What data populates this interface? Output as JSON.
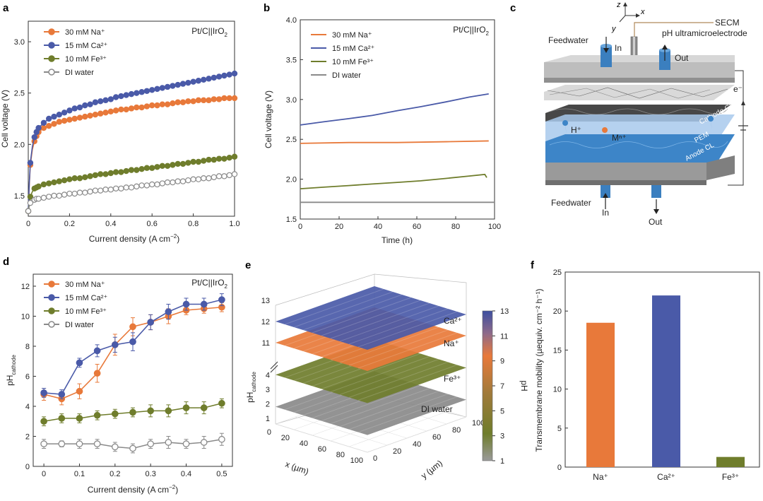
{
  "panels": {
    "a": {
      "label": "a",
      "tag": "Pt/C||IrO",
      "tag_sub": "2",
      "xlabel": "Current density (A cm",
      "xlabel_sup": "−2",
      "xlabel_end": ")",
      "ylabel": "Cell voltage (V)"
    },
    "b": {
      "label": "b",
      "tag": "Pt/C||IrO",
      "tag_sub": "2",
      "xlabel": "Time (h)",
      "ylabel": "Cell voltage (V)"
    },
    "c": {
      "label": "c",
      "secm": "SECM",
      "ph_electrode": "pH ultramicroelectrode",
      "feedwater_top": "Feedwater",
      "in_top": "In",
      "out_top": "Out",
      "electron": "e⁻",
      "cathode_cl": "Cathode CL",
      "pem": "PEM",
      "anode_cl": "Anode CL",
      "h_ion": "H⁺",
      "m_ion": "Mⁿ⁺",
      "feedwater_bottom": "Feedwater",
      "in_bottom": "In",
      "out_bottom": "Out",
      "axis_z": "z",
      "axis_x": "x",
      "axis_y": "y"
    },
    "d": {
      "label": "d",
      "tag": "Pt/C||IrO",
      "tag_sub": "2",
      "xlabel": "Current density (A cm",
      "xlabel_sup": "−2",
      "xlabel_end": ")",
      "ylabel": "pH",
      "ylabel_sub": "cathode"
    },
    "e": {
      "label": "e",
      "xlabel": "x (µm)",
      "ylabel": "y (µm)",
      "zlabel": "pH",
      "zlabel_sub": "cathode",
      "colorbar_label": "pH",
      "surface_labels": [
        "Ca²⁺",
        "Na⁺",
        "Fe³⁺",
        "DI water"
      ]
    },
    "f": {
      "label": "f",
      "ylabel": "Transmembrane mobility (µequiv. cm⁻² h⁻¹)"
    }
  },
  "legend": [
    "30 mM Na⁺",
    "15 mM Ca²⁺",
    "10 mM Fe³⁺",
    "DI water"
  ],
  "colors": {
    "na": "#e8793a",
    "ca": "#4a5aa8",
    "fe": "#6f7d2c",
    "di": "#8a8a8a"
  },
  "chart_data": [
    {
      "id": "a",
      "type": "line",
      "xlim": [
        0,
        1.0
      ],
      "ylim": [
        1.3,
        3.2
      ],
      "xticks": [
        0,
        0.2,
        0.4,
        0.6,
        0.8,
        1.0
      ],
      "xticklabels": [
        "0",
        "0.2",
        "0.4",
        "0.6",
        "0.8",
        "1.0"
      ],
      "yticks": [
        1.5,
        2.0,
        2.5,
        3.0
      ],
      "yticklabels": [
        "1.5",
        "2.0",
        "2.5",
        "3.0"
      ],
      "x": [
        0,
        0.005,
        0.01,
        0.02,
        0.03,
        0.04,
        0.05,
        0.075,
        0.1,
        0.125,
        0.15,
        0.175,
        0.2,
        0.225,
        0.25,
        0.275,
        0.3,
        0.325,
        0.35,
        0.375,
        0.4,
        0.425,
        0.45,
        0.475,
        0.5,
        0.525,
        0.55,
        0.575,
        0.6,
        0.625,
        0.65,
        0.675,
        0.7,
        0.725,
        0.75,
        0.775,
        0.8,
        0.825,
        0.85,
        0.875,
        0.9,
        0.925,
        0.95,
        0.975,
        1.0
      ],
      "series": [
        {
          "name": "30 mM Na⁺",
          "color": "#e8793a",
          "values": [
            1.35,
            1.6,
            1.8,
            1.95,
            2.03,
            2.08,
            2.12,
            2.16,
            2.18,
            2.2,
            2.22,
            2.23,
            2.24,
            2.25,
            2.26,
            2.27,
            2.28,
            2.29,
            2.3,
            2.31,
            2.32,
            2.33,
            2.34,
            2.34,
            2.35,
            2.36,
            2.36,
            2.37,
            2.38,
            2.38,
            2.39,
            2.39,
            2.4,
            2.41,
            2.41,
            2.42,
            2.42,
            2.43,
            2.43,
            2.43,
            2.44,
            2.44,
            2.45,
            2.45,
            2.45
          ]
        },
        {
          "name": "15 mM Ca²⁺",
          "color": "#4a5aa8",
          "values": [
            1.35,
            1.62,
            1.82,
            1.98,
            2.07,
            2.12,
            2.16,
            2.21,
            2.25,
            2.27,
            2.29,
            2.31,
            2.33,
            2.35,
            2.36,
            2.38,
            2.39,
            2.41,
            2.42,
            2.43,
            2.44,
            2.46,
            2.47,
            2.48,
            2.49,
            2.5,
            2.51,
            2.52,
            2.53,
            2.54,
            2.55,
            2.56,
            2.57,
            2.58,
            2.59,
            2.6,
            2.61,
            2.62,
            2.63,
            2.64,
            2.65,
            2.66,
            2.67,
            2.68,
            2.69
          ]
        },
        {
          "name": "10 mM Fe³⁺",
          "color": "#6f7d2c",
          "values": [
            1.35,
            1.42,
            1.49,
            1.54,
            1.57,
            1.58,
            1.59,
            1.61,
            1.62,
            1.63,
            1.64,
            1.65,
            1.66,
            1.67,
            1.67,
            1.68,
            1.69,
            1.7,
            1.71,
            1.71,
            1.72,
            1.73,
            1.73,
            1.74,
            1.75,
            1.75,
            1.76,
            1.77,
            1.77,
            1.78,
            1.79,
            1.79,
            1.8,
            1.81,
            1.81,
            1.82,
            1.83,
            1.83,
            1.84,
            1.85,
            1.85,
            1.86,
            1.86,
            1.87,
            1.88
          ]
        },
        {
          "name": "DI water",
          "color": "#8a8a8a",
          "values": [
            1.35,
            1.4,
            1.43,
            1.45,
            1.46,
            1.47,
            1.47,
            1.48,
            1.49,
            1.5,
            1.5,
            1.51,
            1.52,
            1.52,
            1.53,
            1.53,
            1.54,
            1.55,
            1.55,
            1.56,
            1.56,
            1.57,
            1.57,
            1.58,
            1.58,
            1.59,
            1.6,
            1.6,
            1.61,
            1.61,
            1.62,
            1.63,
            1.63,
            1.64,
            1.64,
            1.65,
            1.66,
            1.66,
            1.67,
            1.67,
            1.68,
            1.69,
            1.69,
            1.7,
            1.71
          ]
        }
      ]
    },
    {
      "id": "b",
      "type": "line",
      "xlim": [
        0,
        100
      ],
      "ylim": [
        1.5,
        4.0
      ],
      "xticks": [
        0,
        20,
        40,
        60,
        80,
        100
      ],
      "xticklabels": [
        "0",
        "20",
        "40",
        "60",
        "80",
        "100"
      ],
      "yticks": [
        1.5,
        2.0,
        2.5,
        3.0,
        3.5,
        4.0
      ],
      "yticklabels": [
        "1.5",
        "2.0",
        "2.5",
        "3.0",
        "3.5",
        "4.0"
      ],
      "series": [
        {
          "name": "30 mM Na⁺",
          "color": "#e8793a",
          "x": [
            0,
            25,
            50,
            75,
            97
          ],
          "values": [
            2.45,
            2.46,
            2.46,
            2.47,
            2.48
          ]
        },
        {
          "name": "15 mM Ca²⁺",
          "color": "#4a5aa8",
          "x": [
            0,
            12,
            25,
            37,
            50,
            62,
            75,
            87,
            97
          ],
          "values": [
            2.68,
            2.72,
            2.76,
            2.8,
            2.86,
            2.91,
            2.97,
            3.03,
            3.07
          ]
        },
        {
          "name": "10 mM Fe³⁺",
          "color": "#6f7d2c",
          "x": [
            0,
            12,
            25,
            37,
            50,
            62,
            75,
            87,
            95,
            96
          ],
          "values": [
            1.88,
            1.9,
            1.92,
            1.94,
            1.96,
            1.98,
            2.01,
            2.04,
            2.06,
            2.02
          ]
        },
        {
          "name": "DI water",
          "color": "#8a8a8a",
          "x": [
            0,
            25,
            50,
            75,
            100
          ],
          "values": [
            1.71,
            1.71,
            1.71,
            1.71,
            1.71
          ]
        }
      ]
    },
    {
      "id": "d",
      "type": "line",
      "xlim": [
        -0.03,
        0.53
      ],
      "ylim": [
        0,
        12.8
      ],
      "xticks": [
        0,
        0.1,
        0.2,
        0.3,
        0.4,
        0.5
      ],
      "xticklabels": [
        "0",
        "0.1",
        "0.2",
        "0.3",
        "0.4",
        "0.5"
      ],
      "yticks": [
        0,
        2,
        4,
        6,
        8,
        10,
        12
      ],
      "yticklabels": [
        "0",
        "2",
        "4",
        "6",
        "8",
        "10",
        "12"
      ],
      "x": [
        0,
        0.05,
        0.1,
        0.15,
        0.2,
        0.25,
        0.3,
        0.35,
        0.4,
        0.45,
        0.5
      ],
      "series": [
        {
          "name": "30 mM Na⁺",
          "color": "#e8793a",
          "values": [
            4.8,
            4.5,
            5.0,
            6.2,
            8.1,
            9.3,
            9.6,
            10.0,
            10.4,
            10.5,
            10.6
          ],
          "errors": [
            0.4,
            0.4,
            0.5,
            0.6,
            0.7,
            0.6,
            0.5,
            0.5,
            0.3,
            0.3,
            0.3
          ]
        },
        {
          "name": "15 mM Ca²⁺",
          "color": "#4a5aa8",
          "values": [
            4.9,
            4.8,
            6.9,
            7.7,
            8.1,
            8.3,
            9.6,
            10.3,
            10.8,
            10.8,
            11.1
          ],
          "errors": [
            0.3,
            0.3,
            0.3,
            0.4,
            0.5,
            0.6,
            0.5,
            0.5,
            0.4,
            0.4,
            0.4
          ]
        },
        {
          "name": "10 mM Fe³⁺",
          "color": "#6f7d2c",
          "values": [
            3.0,
            3.2,
            3.2,
            3.4,
            3.5,
            3.6,
            3.7,
            3.7,
            3.9,
            3.9,
            4.2
          ],
          "errors": [
            0.3,
            0.3,
            0.3,
            0.3,
            0.3,
            0.3,
            0.4,
            0.4,
            0.4,
            0.4,
            0.3
          ]
        },
        {
          "name": "DI water",
          "color": "#8a8a8a",
          "values": [
            1.5,
            1.5,
            1.5,
            1.5,
            1.3,
            1.2,
            1.5,
            1.6,
            1.5,
            1.6,
            1.8
          ],
          "errors": [
            0.3,
            0.2,
            0.3,
            0.3,
            0.3,
            0.3,
            0.3,
            0.4,
            0.3,
            0.4,
            0.4
          ]
        }
      ]
    },
    {
      "id": "e",
      "type": "surface3d",
      "xticklabels": [
        "0",
        "20",
        "40",
        "60",
        "80",
        "100"
      ],
      "yticklabels": [
        "0",
        "20",
        "40",
        "60",
        "80",
        "100"
      ],
      "zticklabels": [
        "1",
        "2",
        "3",
        "4",
        "11",
        "12",
        "13"
      ],
      "colorbar_ticks": [
        "1",
        "3",
        "5",
        "7",
        "9",
        "11",
        "13"
      ],
      "colorbar_range": [
        1,
        13
      ],
      "surfaces": [
        {
          "label": "Ca²⁺",
          "pH": 12.0,
          "color": "#4a5aa8"
        },
        {
          "label": "Na⁺",
          "pH": 11.0,
          "color": "#e8793a"
        },
        {
          "label": "Fe³⁺",
          "pH": 4.0,
          "color": "#6f7d2c"
        },
        {
          "label": "DI water",
          "pH": 1.8,
          "color": "#8a8a8a"
        }
      ]
    },
    {
      "id": "f",
      "type": "bar",
      "categories": [
        "Na⁺",
        "Ca²⁺",
        "Fe³⁺"
      ],
      "values": [
        18.5,
        22.0,
        1.3
      ],
      "colors": [
        "#e8793a",
        "#4a5aa8",
        "#6f7d2c"
      ],
      "ylim": [
        0,
        25
      ],
      "yticks": [
        0,
        5,
        10,
        15,
        20,
        25
      ],
      "yticklabels": [
        "0",
        "5",
        "10",
        "15",
        "20",
        "25"
      ]
    }
  ]
}
